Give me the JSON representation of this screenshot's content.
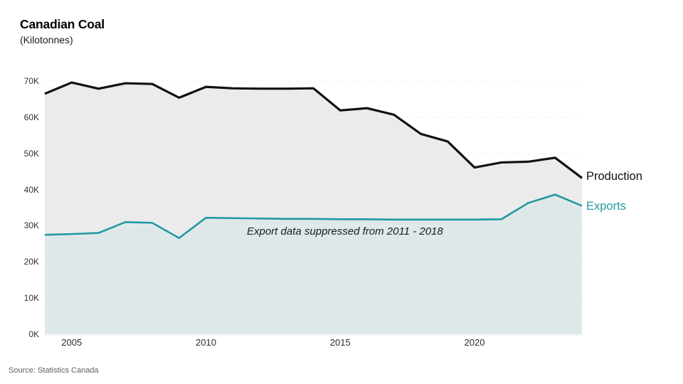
{
  "header": {
    "title": "Canadian Coal",
    "subtitle": "(Kilotonnes)"
  },
  "source": {
    "text": "Source: Statistics Canada"
  },
  "colors": {
    "production_line": "#111111",
    "exports_line": "#2199a2",
    "production_fill": "#ebebeb",
    "exports_fill": "#dfe8e9",
    "gridline_on_white": "#c9c9c9",
    "gridline_on_fill": "rgba(255,255,255,0.65)",
    "axis_text": "#303030"
  },
  "chart_data": {
    "type": "line",
    "title": "Canadian Coal",
    "units": "Kilotonnes",
    "x": [
      2004,
      2005,
      2006,
      2007,
      2008,
      2009,
      2010,
      2011,
      2012,
      2013,
      2014,
      2015,
      2016,
      2017,
      2018,
      2019,
      2020,
      2021,
      2022,
      2023,
      2024
    ],
    "series": [
      {
        "name": "Production",
        "color": "#111111",
        "values": [
          66.5,
          69.6,
          67.9,
          69.4,
          69.2,
          65.4,
          68.4,
          68.0,
          67.9,
          67.9,
          68.0,
          61.9,
          62.5,
          60.7,
          55.4,
          53.3,
          46.1,
          47.5,
          47.7,
          48.8,
          43.2
        ]
      },
      {
        "name": "Exports",
        "color": "#2199a2",
        "values": [
          27.5,
          27.7,
          28.0,
          31.0,
          30.8,
          26.6,
          32.2,
          32.1,
          32.0,
          31.9,
          31.9,
          31.8,
          31.8,
          31.7,
          31.7,
          31.7,
          31.7,
          31.8,
          36.3,
          38.6,
          35.5
        ]
      }
    ],
    "ylim": [
      0,
      70
    ],
    "y_tick_values": [
      0,
      10,
      20,
      30,
      40,
      50,
      60,
      70
    ],
    "y_tick_labels": [
      "0K",
      "10K",
      "20K",
      "30K",
      "40K",
      "50K",
      "60K",
      "70K"
    ],
    "x_tick_values": [
      2005,
      2010,
      2015,
      2020
    ],
    "x_tick_labels": [
      "2005",
      "2010",
      "2015",
      "2020"
    ],
    "grid": "horizontal-dotted",
    "legend_position": "inline-right",
    "annotation": "Export data suppressed from 2011 - 2018"
  }
}
